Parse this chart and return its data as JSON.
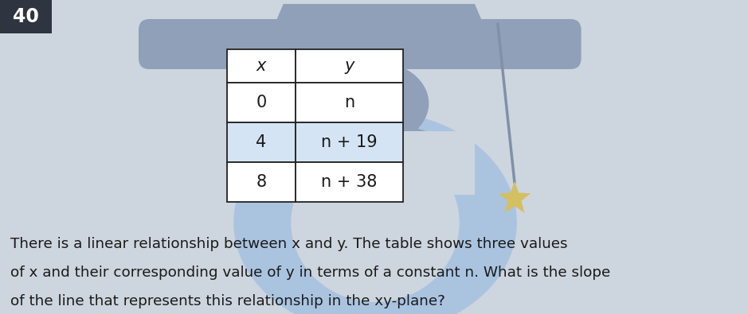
{
  "question_number": "40",
  "question_number_bg": "#2e3440",
  "question_number_color": "#ffffff",
  "background_color": "#cdd5de",
  "table_x_col": [
    "x",
    "0",
    "4",
    "8"
  ],
  "table_y_col": [
    "y",
    "n",
    "n + 19",
    "n + 38"
  ],
  "body_text_line1": "There is a linear relationship between x and y. The table shows three values",
  "body_text_line2": "of x and their corresponding value of y in terms of a constant n. What is the slope",
  "body_text_line3": "of the line that represents this relationship in the xy-plane?",
  "text_color": "#1a1a1a",
  "table_border_color": "#222222",
  "fig_dark": "#8fa0b8",
  "fig_light": "#aac4e0",
  "star_color": "#d4c060",
  "tassel_color": "#8090a8",
  "table_row2_bg": "#d4e4f4",
  "table_other_bg": "#ffffff"
}
